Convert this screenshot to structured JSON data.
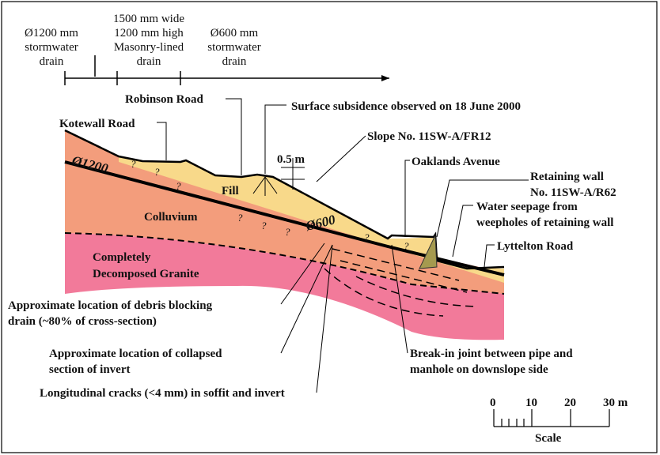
{
  "drains": {
    "d1200": [
      "Ø1200 mm",
      "stormwater",
      "drain"
    ],
    "masonry": [
      "1500 mm wide",
      "1200 mm high",
      "Masonry-lined",
      "drain"
    ],
    "d600": [
      "Ø600 mm",
      "stormwater",
      "drain"
    ]
  },
  "labels": {
    "robinson": "Robinson Road",
    "subsidence": "Surface subsidence observed on 18 June 2000",
    "kotewall": "Kotewall Road",
    "slope": "Slope No. 11SW-A/FR12",
    "oaklands": "Oaklands Avenue",
    "wall": [
      "Retaining wall",
      "No. 11SW-A/R62"
    ],
    "seepage": [
      "Water seepage from",
      "weepholes of retaining wall"
    ],
    "lyttelton": "Lyttelton Road",
    "dim": "0.5 m",
    "pipe1200": "Ø1200",
    "pipe600": "Ø600",
    "fill": "Fill",
    "colluvium": "Colluvium",
    "cdg": [
      "Completely",
      "Decomposed Granite"
    ],
    "debris": [
      "Approximate location of debris blocking",
      "drain (~80% of cross-section)"
    ],
    "collapse": [
      "Approximate location of collapsed",
      "section of invert"
    ],
    "cracks": "Longitudinal cracks (<4 mm) in soffit and invert",
    "breakin": [
      "Break-in joint between pipe and",
      "manhole on downslope side"
    ],
    "uncertain": "?"
  },
  "scale": {
    "ticks": [
      "0",
      "10",
      "20",
      "30 m"
    ],
    "title": "Scale"
  },
  "colors": {
    "fill": "#f8d98a",
    "colluvium": "#f39d7c",
    "cdg": "#f27a9a",
    "wall": "#a59a4f"
  }
}
